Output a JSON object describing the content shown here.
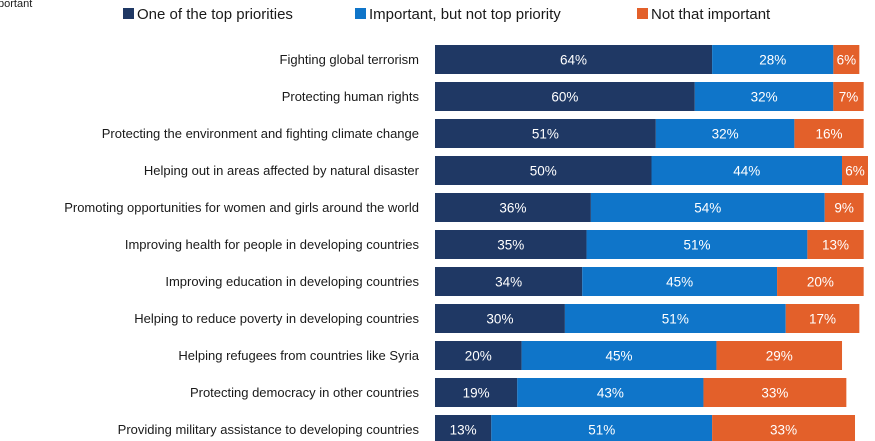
{
  "chart_data": {
    "type": "bar",
    "orientation": "horizontal",
    "stacked": true,
    "value_format": "percent",
    "xlim": [
      0,
      100
    ],
    "grid": false,
    "legend_position": "top",
    "categories": [
      "Fighting global terrorism",
      "Protecting human rights",
      "Protecting the environment and fighting climate change",
      "Helping out in areas affected by natural disaster",
      "Promoting opportunities for women and girls around the world",
      "Improving health for people in developing countries",
      "Improving education in developing countries",
      "Helping to reduce poverty in developing countries",
      "Helping refugees from countries like Syria",
      "Protecting democracy in other countries",
      "Providing military assistance to developing countries"
    ],
    "series": [
      {
        "name": "One of the top priorities",
        "color": "#1f3864",
        "values": [
          64,
          60,
          51,
          50,
          36,
          35,
          34,
          30,
          20,
          19,
          13
        ]
      },
      {
        "name": "Important, but not top priority",
        "color": "#0f75c9",
        "values": [
          28,
          32,
          32,
          44,
          54,
          51,
          45,
          51,
          45,
          43,
          51
        ]
      },
      {
        "name": "Not that important",
        "color": "#e3602a",
        "values": [
          6,
          7,
          16,
          6,
          9,
          13,
          20,
          17,
          29,
          33,
          33
        ]
      }
    ]
  },
  "corner_text": "portant"
}
